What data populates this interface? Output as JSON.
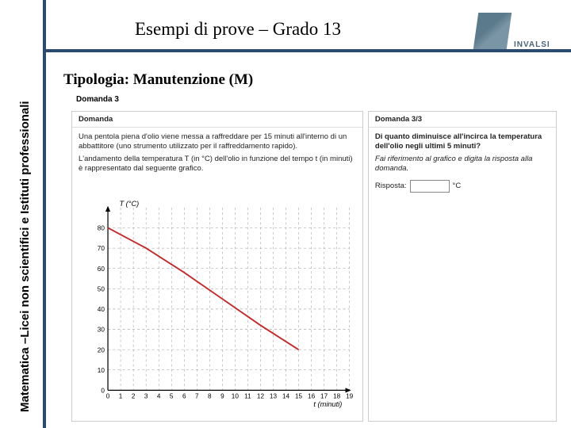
{
  "header": {
    "title": "Esempi di prove – Grado 13"
  },
  "logo": {
    "text": "INVALSI"
  },
  "subtitle": "Tipologia: Manutenzione (M)",
  "sidelabel": "Matematica –Licei non scientifici e Istituti professionali",
  "domanda3_label": "Domanda 3",
  "left_panel": {
    "head": "Domanda",
    "p1": "Una pentola piena d'olio viene messa a raffreddare per 15 minuti all'interno di un abbattitore (uno strumento utilizzato per il raffreddamento rapido).",
    "p2": "L'andamento della temperatura T (in °C) dell'olio in funzione del tempo t (in minuti) è rappresentato dal seguente grafico.",
    "chart": {
      "xlabel": "t (minuti)",
      "ylabel": "T (°C)",
      "xmin": 0,
      "xmax": 19,
      "ymin": 0,
      "ymax": 90,
      "xticks": [
        0,
        1,
        2,
        3,
        4,
        5,
        6,
        7,
        8,
        9,
        10,
        11,
        12,
        13,
        14,
        15,
        16,
        17,
        18,
        19
      ],
      "yticks": [
        0,
        10,
        20,
        30,
        40,
        50,
        60,
        70,
        80
      ],
      "curve_points": [
        [
          0,
          80
        ],
        [
          3,
          70
        ],
        [
          6,
          58
        ],
        [
          9,
          45
        ],
        [
          12,
          32
        ],
        [
          15,
          20
        ]
      ],
      "curve_color": "#c62828",
      "grid_color": "#999999",
      "axis_color": "#000000",
      "bg": "#ffffff"
    }
  },
  "right_panel": {
    "head": "Domanda 3/3",
    "question": "Di quanto diminuisce all'incirca la temperatura dell'olio negli ultimi 5 minuti?",
    "hint": "Fai riferimento al grafico e digita la risposta alla domanda.",
    "answer_label": "Risposta:",
    "answer_unit": "°C",
    "answer_value": ""
  }
}
